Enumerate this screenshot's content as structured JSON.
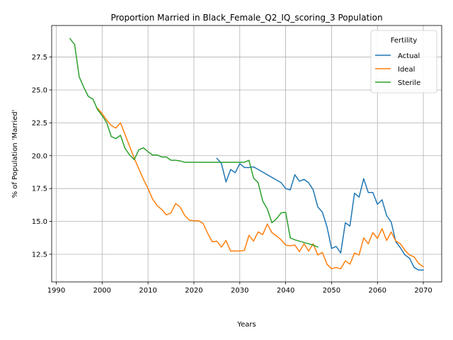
{
  "chart_data": {
    "type": "line",
    "title": "Proportion Married in Black_Female_Q2_IQ_scoring_3 Population",
    "xlabel": "Years",
    "ylabel": "% of Population 'Married'",
    "xlim": [
      1989,
      2074
    ],
    "ylim": [
      10.4,
      29.9
    ],
    "xticks": [
      1990,
      2000,
      2010,
      2020,
      2030,
      2040,
      2050,
      2060,
      2070
    ],
    "yticks": [
      12.5,
      15.0,
      17.5,
      20.0,
      22.5,
      25.0,
      27.5
    ],
    "ytick_labels": [
      "12.5",
      "15.0",
      "17.5",
      "20.0",
      "22.5",
      "25.0",
      "27.5"
    ],
    "grid": true,
    "legend": {
      "title": "Fertility",
      "placement": "top-right"
    },
    "series": [
      {
        "name": "Actual",
        "color": "#1f77b4",
        "x": [
          2025,
          2026,
          2027,
          2028,
          2029,
          2030,
          2031,
          2032,
          2033,
          2034,
          2035,
          2036,
          2037,
          2038,
          2039,
          2040,
          2041,
          2042,
          2043,
          2044,
          2045,
          2046,
          2047,
          2048,
          2049,
          2050,
          2051,
          2052,
          2053,
          2054,
          2055,
          2056,
          2057,
          2058,
          2059,
          2060,
          2061,
          2062,
          2063,
          2064,
          2065,
          2066,
          2067,
          2068,
          2069,
          2070
        ],
        "y": [
          19.8,
          19.4,
          18.0,
          18.95,
          18.7,
          19.4,
          19.1,
          19.1,
          19.15,
          18.95,
          18.75,
          18.55,
          18.35,
          18.15,
          17.95,
          17.5,
          17.4,
          18.55,
          18.05,
          18.2,
          17.95,
          17.4,
          16.1,
          15.7,
          14.6,
          12.95,
          13.1,
          12.6,
          14.9,
          14.65,
          17.15,
          16.85,
          18.25,
          17.2,
          17.2,
          16.3,
          16.65,
          15.45,
          14.95,
          13.45,
          13.0,
          12.45,
          12.2,
          11.5,
          11.3,
          11.3
        ]
      },
      {
        "name": "Ideal",
        "color": "#ff7f0e",
        "x": [
          1999,
          2000,
          2001,
          2002,
          2003,
          2004,
          2005,
          2006,
          2007,
          2008,
          2009,
          2010,
          2011,
          2012,
          2013,
          2014,
          2015,
          2016,
          2017,
          2018,
          2019,
          2020,
          2021,
          2022,
          2023,
          2024,
          2025,
          2026,
          2027,
          2028,
          2029,
          2030,
          2031,
          2032,
          2033,
          2034,
          2035,
          2036,
          2037,
          2038,
          2039,
          2040,
          2041,
          2042,
          2043,
          2044,
          2045,
          2046,
          2047,
          2048,
          2049,
          2050,
          2051,
          2052,
          2053,
          2054,
          2055,
          2056,
          2057,
          2058,
          2059,
          2060,
          2061,
          2062,
          2063,
          2064,
          2065,
          2066,
          2067,
          2068,
          2069,
          2070
        ],
        "y": [
          23.6,
          23.2,
          22.7,
          22.3,
          22.1,
          22.5,
          21.6,
          20.7,
          19.8,
          19.0,
          18.2,
          17.5,
          16.7,
          16.2,
          15.9,
          15.5,
          15.65,
          16.35,
          16.1,
          15.45,
          15.1,
          15.05,
          15.05,
          14.85,
          14.1,
          13.45,
          13.5,
          13.05,
          13.55,
          12.75,
          12.75,
          12.75,
          12.8,
          13.95,
          13.5,
          14.2,
          14.0,
          14.8,
          14.15,
          13.9,
          13.6,
          13.2,
          13.15,
          13.2,
          12.7,
          13.3,
          12.75,
          13.3,
          12.45,
          12.65,
          11.75,
          11.4,
          11.5,
          11.4,
          12.0,
          11.75,
          12.6,
          12.45,
          13.75,
          13.3,
          14.15,
          13.7,
          14.45,
          13.55,
          14.2,
          13.5,
          13.3,
          12.8,
          12.45,
          12.3,
          11.8,
          11.55
        ]
      },
      {
        "name": "Sterile",
        "color": "#2ca02c",
        "x": [
          1993,
          1994,
          1995,
          1996,
          1997,
          1998,
          1999,
          2000,
          2001,
          2002,
          2003,
          2004,
          2005,
          2006,
          2007,
          2008,
          2009,
          2010,
          2011,
          2012,
          2013,
          2014,
          2015,
          2016,
          2017,
          2018,
          2019,
          2020,
          2021,
          2022,
          2023,
          2024,
          2025,
          2026,
          2027,
          2028,
          2029,
          2030,
          2031,
          2032,
          2033,
          2034,
          2035,
          2036,
          2037,
          2038,
          2039,
          2040,
          2041,
          2042,
          2043,
          2044,
          2045,
          2046,
          2047
        ],
        "y": [
          28.9,
          28.45,
          26.0,
          25.2,
          24.5,
          24.3,
          23.5,
          23.05,
          22.5,
          21.45,
          21.3,
          21.55,
          20.55,
          20.05,
          19.7,
          20.45,
          20.6,
          20.3,
          20.05,
          20.05,
          19.9,
          19.9,
          19.65,
          19.65,
          19.6,
          19.5,
          19.5,
          19.5,
          19.5,
          19.5,
          19.5,
          19.5,
          19.5,
          19.5,
          19.5,
          19.5,
          19.5,
          19.5,
          19.5,
          19.65,
          18.3,
          17.95,
          16.55,
          15.95,
          14.9,
          15.2,
          15.65,
          15.7,
          13.75,
          13.6,
          13.5,
          13.4,
          13.3,
          13.2,
          13.05
        ]
      }
    ]
  }
}
